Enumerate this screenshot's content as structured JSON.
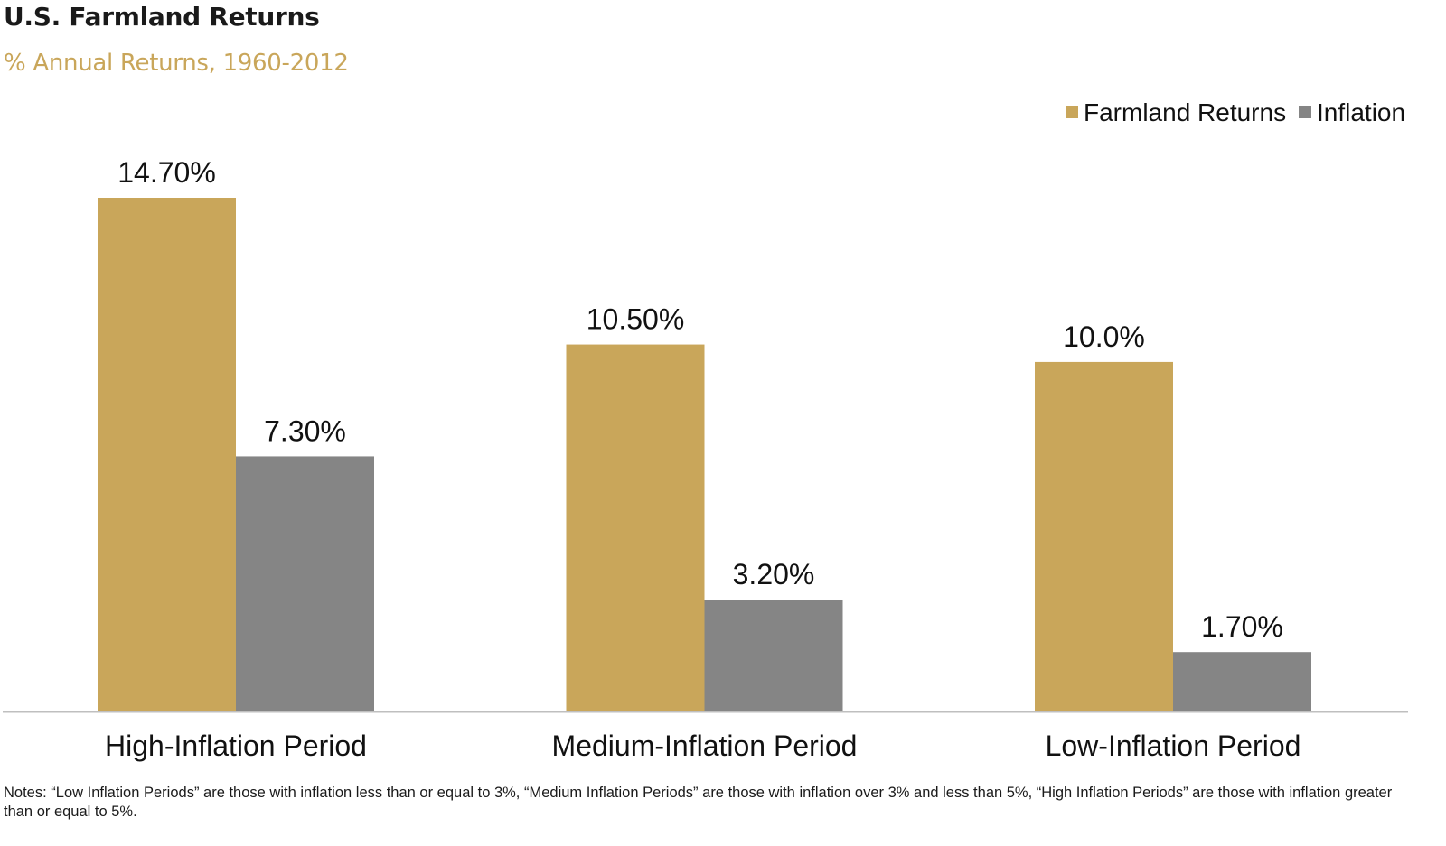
{
  "header": {
    "title": "U.S. Farmland Returns",
    "subtitle": "% Annual Returns, 1960-2012"
  },
  "notes": "Notes: “Low Inflation Periods” are those with inflation less than or equal to 3%, “Medium Inflation Periods” are those with inflation over 3% and less than 5%, “High Inflation Periods” are those with inflation greater than or equal to 5%.",
  "chart_data": {
    "type": "bar",
    "title": "U.S. Farmland Returns",
    "subtitle": "% Annual Returns, 1960-2012",
    "categories": [
      "High-Inflation Period",
      "Medium-Inflation Period",
      "Low-Inflation Period"
    ],
    "series": [
      {
        "name": "Farmland Returns",
        "values": [
          14.7,
          10.5,
          10.0
        ],
        "labels": [
          "14.70%",
          "10.50%",
          "10.0%"
        ],
        "color": "#c9a65a"
      },
      {
        "name": "Inflation",
        "values": [
          7.3,
          3.2,
          1.7
        ],
        "labels": [
          "7.30%",
          "3.20%",
          "1.70%"
        ],
        "color": "#858585"
      }
    ],
    "ylim": [
      0,
      14.7
    ],
    "grid": false,
    "legend": "top-right",
    "axis_color": "#bfbfbf"
  }
}
